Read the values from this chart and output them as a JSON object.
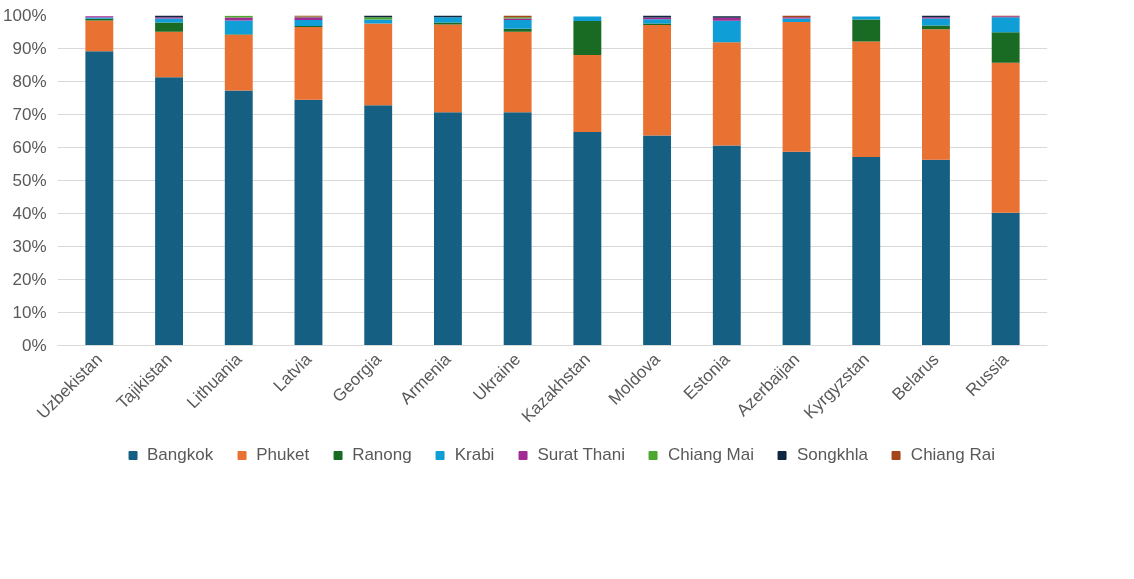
{
  "chart_data": {
    "type": "bar",
    "stacked": true,
    "categories": [
      "Uzbekistan",
      "Tajikistan",
      "Lithuania",
      "Latvia",
      "Georgia",
      "Armenia",
      "Ukraine",
      "Kazakhstan",
      "Moldova",
      "Estonia",
      "Azerbaijan",
      "Kyrgyzstan",
      "Belarus",
      "Russia"
    ],
    "series": [
      {
        "name": "Bangkok",
        "color": "#156082",
        "values": [
          89.2,
          81.3,
          77.3,
          74.5,
          72.8,
          70.7,
          70.7,
          64.7,
          63.6,
          60.6,
          58.7,
          57.1,
          56.3,
          40.2
        ]
      },
      {
        "name": "Phuket",
        "color": "#e97132",
        "values": [
          9.3,
          13.8,
          16.9,
          22.0,
          24.8,
          26.6,
          24.4,
          23.3,
          33.5,
          31.3,
          39.3,
          35.0,
          39.5,
          45.5
        ]
      },
      {
        "name": "Ranong",
        "color": "#196b24",
        "values": [
          0.5,
          2.8,
          0.1,
          0.3,
          0,
          0.6,
          0.9,
          10.3,
          0.5,
          null,
          0,
          6.7,
          1.2,
          9.2
        ]
      },
      {
        "name": "Krabi",
        "color": "#0f9ed5",
        "values": [
          0.4,
          1.2,
          4.2,
          1.8,
          1.2,
          1.6,
          2.6,
          1.4,
          1.3,
          6.5,
          1.1,
          0.9,
          2.1,
          4.6
        ]
      },
      {
        "name": "Surat Thani",
        "color": "#a02b93",
        "values": [
          0.4,
          0.4,
          0.9,
          0.9,
          0,
          0,
          0.5,
          0,
          0.5,
          0.9,
          0.4,
          0,
          0.4,
          0.3
        ]
      },
      {
        "name": "Chiang Mai",
        "color": "#4ea72e",
        "values": [
          0,
          0,
          0.5,
          0.2,
          0.7,
          0,
          0.4,
          0,
          0,
          0,
          0,
          0,
          0,
          0
        ]
      },
      {
        "name": "Songkhla",
        "color": "#0e2841",
        "values": [
          null,
          0.5,
          null,
          0,
          0.5,
          0.5,
          0,
          0,
          0.6,
          0.5,
          0,
          0,
          0.5,
          0
        ]
      },
      {
        "name": "Chiang Rai",
        "color": "#a5451b",
        "values": [
          0,
          0,
          0,
          0.3,
          0,
          0,
          0.5,
          null,
          0,
          0,
          0.5,
          null,
          0,
          0.2
        ]
      }
    ],
    "ylim": [
      0,
      100
    ],
    "yticks": [
      {
        "value": 0,
        "label": "0%"
      },
      {
        "value": 10,
        "label": "10%"
      },
      {
        "value": 20,
        "label": "20%"
      },
      {
        "value": 30,
        "label": "30%"
      },
      {
        "value": 40,
        "label": "40%"
      },
      {
        "value": 50,
        "label": "50%"
      },
      {
        "value": 60,
        "label": "60%"
      },
      {
        "value": 70,
        "label": "70%"
      },
      {
        "value": 80,
        "label": "80%"
      },
      {
        "value": 90,
        "label": "90%"
      },
      {
        "value": 100,
        "label": "100%"
      }
    ],
    "grid": "y",
    "legend": "bottom"
  }
}
